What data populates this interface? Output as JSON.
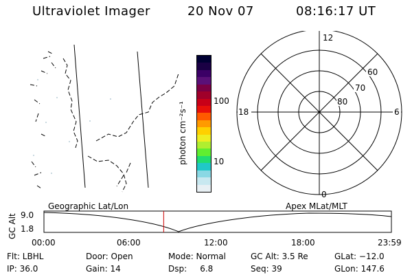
{
  "header": {
    "title": "Ultraviolet Imager",
    "date": "20 Nov 07",
    "time": "08:16:17 UT"
  },
  "colorbar": {
    "label": "photon cm⁻²s⁻¹",
    "ticks": [
      "100",
      "10"
    ],
    "colors": [
      "#000033",
      "#1a0044",
      "#3b0066",
      "#5a1078",
      "#7a0044",
      "#a0002a",
      "#c80018",
      "#e8100a",
      "#ff5a00",
      "#ff9a00",
      "#ffd000",
      "#eeee22",
      "#b0ee30",
      "#60ee30",
      "#20dd70",
      "#20c8c8",
      "#8ad8e4",
      "#c8e8f0",
      "#e8f0f4"
    ]
  },
  "geo_panel": {
    "label": "Geographic Lat/Lon"
  },
  "polar_plot": {
    "label": "Apex MLat/MLT",
    "mlt_labels": {
      "top": "12",
      "bottom": "0",
      "left": "18",
      "right": "6"
    },
    "lat_labels": [
      "60",
      "70",
      "80"
    ]
  },
  "altitude_plot": {
    "ylabel": "GC Alt",
    "yticks": [
      "9.0",
      "1.8"
    ],
    "xticks": [
      "00:00",
      "06:00",
      "12:00",
      "18:00",
      "23:59"
    ],
    "marker_time_hours": 8.27,
    "marker_color": "#cc0000"
  },
  "info": {
    "row1": {
      "flt": "Flt: LBHL",
      "door": "Door: Open",
      "mode": "Mode: Normal",
      "gcalt": "GC Alt: 3.5 Re",
      "glat": "GLat: −12.0"
    },
    "row2": {
      "ip": "IP: 36.0",
      "gain": "Gain: 14",
      "dsp": "Dsp:     6.8",
      "seq": "Seq: 39",
      "glon": "GLon: 147.6"
    }
  }
}
